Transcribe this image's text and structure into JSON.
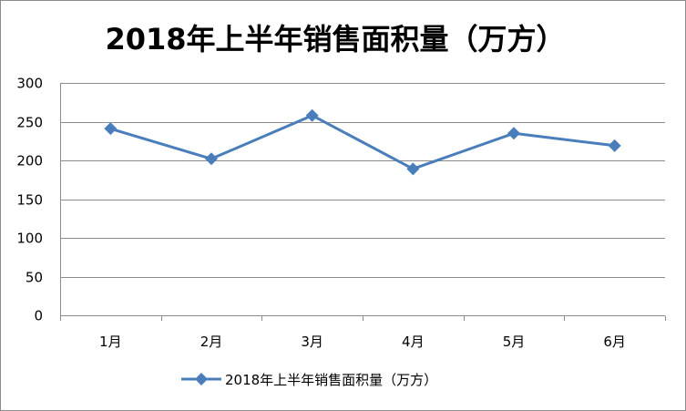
{
  "chart_data": {
    "type": "line",
    "title": "2018年上半年销售面积量（万方）",
    "categories": [
      "1月",
      "2月",
      "3月",
      "4月",
      "5月",
      "6月"
    ],
    "series": [
      {
        "name": "2018年上半年销售面积量（万方）",
        "values": [
          241,
          202,
          258,
          189,
          235,
          219
        ]
      }
    ],
    "yticks": [
      0,
      50,
      100,
      150,
      200,
      250,
      300
    ],
    "ylim": [
      0,
      300
    ],
    "xlabel": "",
    "ylabel": "",
    "grid": true,
    "legend": "bottom",
    "colors": {
      "series": "#4a7ebb",
      "grid": "#8c8c8c",
      "axis": "#8c8c8c"
    }
  }
}
